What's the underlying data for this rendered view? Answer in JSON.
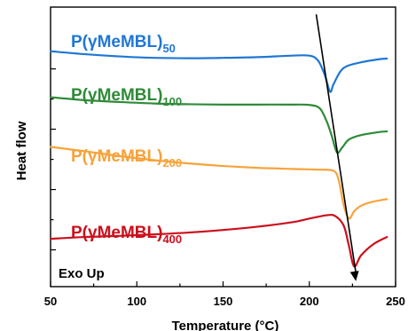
{
  "chart_data": {
    "type": "line",
    "xlabel": "Temperature (°C)",
    "ylabel": "Heat flow",
    "xlim": [
      50,
      250
    ],
    "x_ticks": [
      "50",
      "100",
      "150",
      "200",
      "250"
    ],
    "y_ticks_labeled": false,
    "grid": false,
    "legend": "inline-labels",
    "annotation": "Exo Up",
    "series": [
      {
        "name_main": "P(γMeMBL)",
        "name_sub": "50",
        "color": "#1f77d4",
        "x": [
          50,
          70,
          90,
          110,
          130,
          150,
          170,
          190,
          200,
          205,
          209,
          212,
          214,
          218,
          222,
          230,
          240,
          245
        ],
        "y": [
          5.1,
          5.02,
          4.96,
          4.92,
          4.91,
          4.92,
          4.94,
          4.98,
          4.98,
          4.85,
          4.45,
          4.0,
          4.2,
          4.55,
          4.7,
          4.8,
          4.88,
          4.9
        ]
      },
      {
        "name_main": "P(γMeMBL)",
        "name_sub": "100",
        "color": "#2e8b37",
        "x": [
          50,
          70,
          90,
          110,
          130,
          150,
          170,
          190,
          200,
          206,
          210,
          213,
          216,
          219,
          223,
          230,
          240,
          245
        ],
        "y": [
          3.85,
          3.77,
          3.72,
          3.68,
          3.66,
          3.65,
          3.65,
          3.65,
          3.64,
          3.55,
          3.2,
          2.8,
          2.35,
          2.48,
          2.7,
          2.82,
          2.9,
          2.92
        ]
      },
      {
        "name_main": "P(γMeMBL)",
        "name_sub": "200",
        "color": "#f7a33a",
        "x": [
          50,
          70,
          90,
          110,
          130,
          150,
          170,
          190,
          205,
          214,
          217,
          220,
          223,
          226,
          230,
          236,
          245
        ],
        "y": [
          2.5,
          2.38,
          2.25,
          2.14,
          2.05,
          1.98,
          1.93,
          1.9,
          1.88,
          1.85,
          1.6,
          0.9,
          0.55,
          0.75,
          0.9,
          1.0,
          1.08
        ]
      },
      {
        "name_main": "P(γMeMBL)",
        "name_sub": "400",
        "color": "#cc0f1c",
        "x": [
          50,
          70,
          90,
          110,
          130,
          150,
          170,
          190,
          200,
          210,
          215,
          220,
          223,
          226,
          230,
          237,
          245
        ],
        "y": [
          0.0,
          0.05,
          0.08,
          0.12,
          0.17,
          0.24,
          0.33,
          0.45,
          0.55,
          0.64,
          0.62,
          0.35,
          -0.2,
          -0.75,
          -0.45,
          -0.15,
          0.05
        ]
      }
    ],
    "arrow_y_start": 6.1,
    "arrow_x_start": 204,
    "arrow_x_end": 227,
    "arrow_y_end": -1.15
  }
}
